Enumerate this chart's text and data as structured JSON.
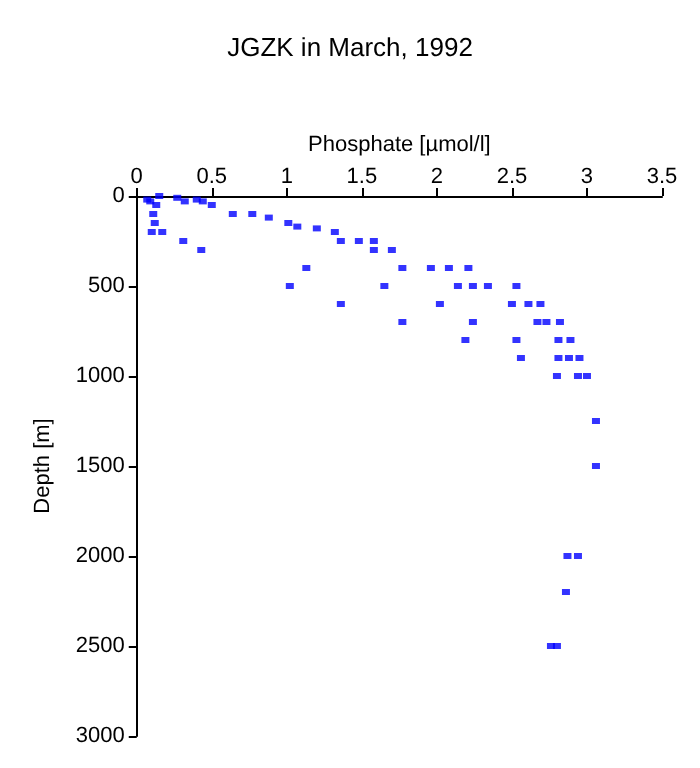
{
  "chart_data": {
    "type": "scatter",
    "title": "JGZK in March, 1992",
    "xlabel": "Phosphate [µmol/l]",
    "ylabel": "Depth [m]",
    "x": [
      0.07,
      0.09,
      0.13,
      0.11,
      0.12,
      0.1,
      0.17,
      0.15,
      0.27,
      0.32,
      0.4,
      0.44,
      0.5,
      0.64,
      0.77,
      0.88,
      1.01,
      1.07,
      1.2,
      1.32,
      0.31,
      0.43,
      1.36,
      1.48,
      1.58,
      1.58,
      1.7,
      1.13,
      1.77,
      1.96,
      2.08,
      2.21,
      1.02,
      1.65,
      2.14,
      2.24,
      2.34,
      2.53,
      1.36,
      2.02,
      2.5,
      2.61,
      2.69,
      1.77,
      2.24,
      2.67,
      2.73,
      2.82,
      2.19,
      2.53,
      2.81,
      2.89,
      2.56,
      2.81,
      2.88,
      2.95,
      2.8,
      2.94,
      3.0,
      3.06,
      3.06,
      2.87,
      2.94,
      2.86,
      2.76,
      2.8
    ],
    "series": [
      {
        "color": "#0000ff",
        "values": [
          20,
          30,
          50,
          100,
          150,
          200,
          200,
          0,
          10,
          30,
          20,
          30,
          50,
          100,
          100,
          120,
          150,
          170,
          180,
          200,
          250,
          300,
          250,
          250,
          250,
          300,
          300,
          400,
          400,
          400,
          400,
          400,
          500,
          500,
          500,
          500,
          500,
          500,
          600,
          600,
          600,
          600,
          600,
          700,
          700,
          700,
          700,
          700,
          800,
          800,
          800,
          800,
          900,
          900,
          900,
          900,
          1000,
          1000,
          1000,
          1250,
          1500,
          2000,
          2000,
          2200,
          2500,
          2500
        ]
      }
    ],
    "xlim": [
      0,
      3.5
    ],
    "xticks": [
      0,
      0.5,
      1,
      1.5,
      2,
      2.5,
      3,
      3.5
    ],
    "ylim": [
      3000,
      0
    ],
    "yticks": [
      0,
      500,
      1000,
      1500,
      2000,
      2500,
      3000
    ],
    "marker": "square",
    "grid": false
  }
}
